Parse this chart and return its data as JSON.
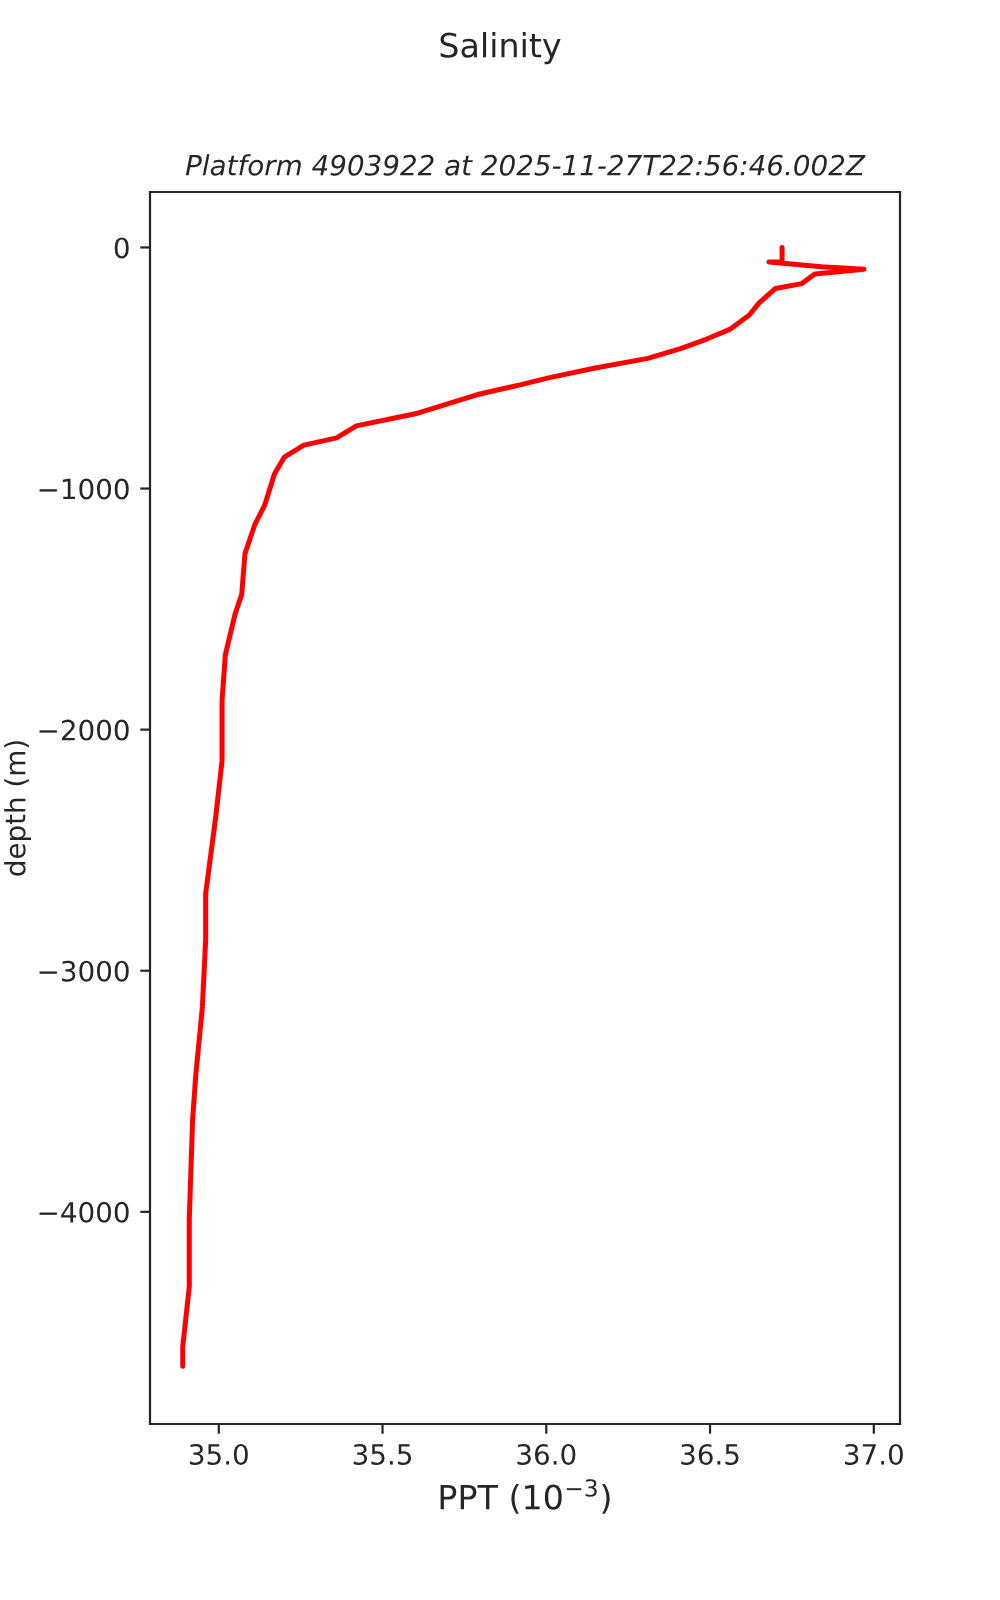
{
  "chart_data": {
    "type": "line",
    "title": "Salinity",
    "subtitle": "Platform 4903922 at 2025-11-27T22:56:46.002Z",
    "xlabel": "PPT (10$^{−3}$)",
    "ylabel": "depth (m)",
    "series": [
      {
        "color": "#ff0000",
        "x": [
          36.72,
          36.72,
          36.68,
          36.84,
          36.97,
          36.82,
          36.78,
          36.7,
          36.65,
          36.62,
          36.56,
          36.49,
          36.41,
          36.31,
          36.15,
          36.01,
          35.92,
          35.79,
          35.6,
          35.42,
          35.36,
          35.26,
          35.2,
          35.17,
          35.14,
          35.11,
          35.08,
          35.07,
          35.05,
          35.02,
          35.01,
          35.01,
          34.99,
          34.96,
          34.96,
          34.95,
          34.93,
          34.92,
          34.91,
          34.91,
          34.89,
          34.89
        ],
        "values": [
          0,
          -60,
          -60,
          -80,
          -90,
          -110,
          -150,
          -170,
          -230,
          -280,
          -340,
          -380,
          -420,
          -460,
          -500,
          -540,
          -570,
          -610,
          -690,
          -740,
          -790,
          -820,
          -870,
          -940,
          -1070,
          -1150,
          -1270,
          -1440,
          -1520,
          -1690,
          -1880,
          -2130,
          -2370,
          -2680,
          -2870,
          -3150,
          -3430,
          -3620,
          -4030,
          -4310,
          -4560,
          -4640
        ]
      }
    ],
    "xlim": [
      34.79,
      37.08
    ],
    "ylim": [
      -4880,
      230
    ],
    "xticks": [
      {
        "value": 35,
        "label": "35.0"
      },
      35.5,
      {
        "value": 36,
        "label": "36.0"
      },
      36.5,
      {
        "value": 37,
        "label": "37.0"
      }
    ],
    "yticks": [
      0,
      {
        "value": -1000,
        "label": "−1000"
      },
      {
        "value": -2000,
        "label": "−2000"
      },
      {
        "value": -3000,
        "label": "−3000"
      },
      {
        "value": -4000,
        "label": "−4000"
      }
    ],
    "grid": false,
    "legend": false,
    "marker": "none",
    "line_style": "solid"
  }
}
